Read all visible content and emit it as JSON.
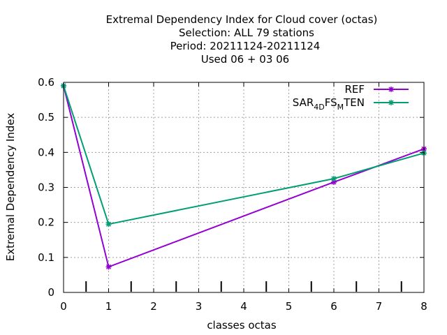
{
  "chart_data": {
    "type": "line",
    "title_lines": [
      "Extremal Dependency Index  for Cloud cover (octas)",
      "Selection: ALL     79 stations",
      "Period: 20211124-20211124",
      "Used  06 + 03 06"
    ],
    "xlabel": "classes octas",
    "ylabel": "Extremal Dependency Index",
    "xlim": [
      0,
      8
    ],
    "ylim": [
      0,
      0.6
    ],
    "xticks": [
      0,
      1,
      2,
      3,
      4,
      5,
      6,
      7,
      8
    ],
    "yticks": [
      0,
      0.1,
      0.2,
      0.3,
      0.4,
      0.5,
      0.6
    ],
    "ytick_labels": [
      "0",
      "0.1",
      "0.2",
      "0.3",
      "0.4",
      "0.5",
      "0.6"
    ],
    "threshold_marks": [
      0.5,
      1.5,
      2.5,
      3.5,
      4.5,
      5.5,
      6.5,
      7.5
    ],
    "grid": true,
    "legend_position": "top-right",
    "series": [
      {
        "name": "REF",
        "color": "#9400d3",
        "x": [
          0,
          1,
          6,
          8
        ],
        "y": [
          0.59,
          0.073,
          0.315,
          0.41
        ]
      },
      {
        "name_parts": [
          "SAR",
          "4D",
          "FS",
          "M",
          "TEN"
        ],
        "color": "#009e73",
        "x": [
          0,
          1,
          6,
          8
        ],
        "y": [
          0.59,
          0.195,
          0.325,
          0.398
        ]
      }
    ]
  }
}
